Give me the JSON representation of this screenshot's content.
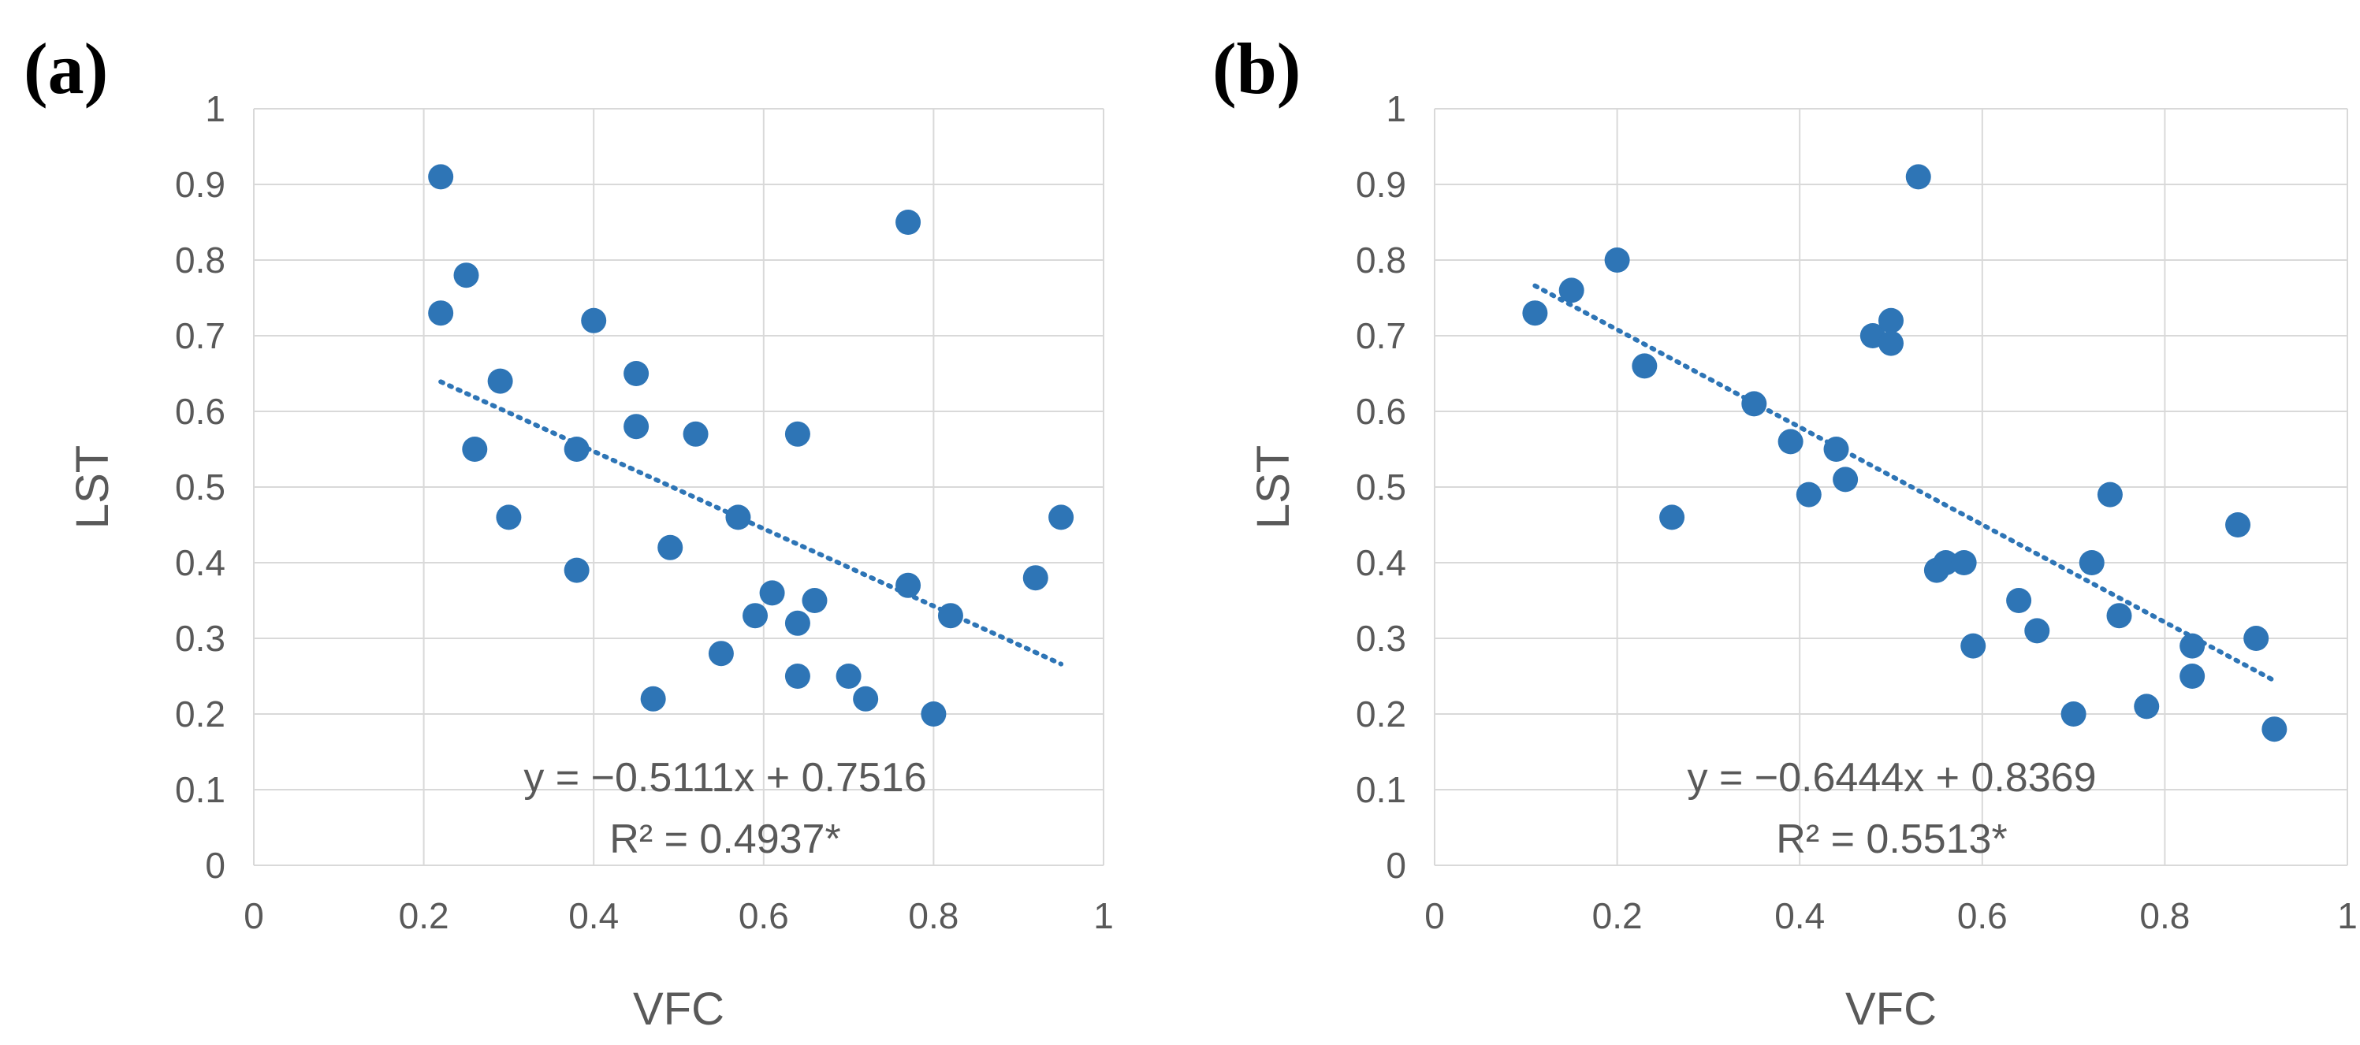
{
  "colors": {
    "marker": "#2E75B6",
    "grid": "#D9D9D9",
    "text": "#595959",
    "background": "#FFFFFF"
  },
  "chart_data": [
    {
      "type": "scatter",
      "panel_label": "(a)",
      "xlabel": "VFC",
      "ylabel": "LST",
      "xlim": [
        0,
        1
      ],
      "ylim": [
        0,
        1
      ],
      "x_ticks": [
        "0",
        "0.2",
        "0.4",
        "0.6",
        "0.8",
        "1"
      ],
      "y_ticks": [
        "0",
        "0.1",
        "0.2",
        "0.3",
        "0.4",
        "0.5",
        "0.6",
        "0.7",
        "0.8",
        "0.9",
        "1"
      ],
      "grid": true,
      "points": [
        [
          0.22,
          0.91
        ],
        [
          0.22,
          0.73
        ],
        [
          0.25,
          0.78
        ],
        [
          0.26,
          0.55
        ],
        [
          0.29,
          0.64
        ],
        [
          0.3,
          0.46
        ],
        [
          0.38,
          0.55
        ],
        [
          0.38,
          0.39
        ],
        [
          0.4,
          0.72
        ],
        [
          0.45,
          0.65
        ],
        [
          0.45,
          0.58
        ],
        [
          0.47,
          0.22
        ],
        [
          0.49,
          0.42
        ],
        [
          0.52,
          0.57
        ],
        [
          0.55,
          0.28
        ],
        [
          0.57,
          0.46
        ],
        [
          0.59,
          0.33
        ],
        [
          0.61,
          0.36
        ],
        [
          0.64,
          0.57
        ],
        [
          0.64,
          0.32
        ],
        [
          0.64,
          0.25
        ],
        [
          0.66,
          0.35
        ],
        [
          0.7,
          0.25
        ],
        [
          0.72,
          0.22
        ],
        [
          0.77,
          0.85
        ],
        [
          0.77,
          0.37
        ],
        [
          0.8,
          0.2
        ],
        [
          0.82,
          0.33
        ],
        [
          0.92,
          0.38
        ],
        [
          0.95,
          0.46
        ]
      ],
      "trendline": {
        "slope": -0.5111,
        "intercept": 0.7516,
        "x_range": [
          0.22,
          0.95
        ]
      },
      "equation": "y = −0.5111x + 0.7516",
      "r_squared": "R² = 0.4937*"
    },
    {
      "type": "scatter",
      "panel_label": "(b)",
      "xlabel": "VFC",
      "ylabel": "LST",
      "xlim": [
        0,
        1
      ],
      "ylim": [
        0,
        1
      ],
      "x_ticks": [
        "0",
        "0.2",
        "0.4",
        "0.6",
        "0.8",
        "1"
      ],
      "y_ticks": [
        "0",
        "0.1",
        "0.2",
        "0.3",
        "0.4",
        "0.5",
        "0.6",
        "0.7",
        "0.8",
        "0.9",
        "1"
      ],
      "grid": true,
      "points": [
        [
          0.11,
          0.73
        ],
        [
          0.15,
          0.76
        ],
        [
          0.2,
          0.8
        ],
        [
          0.23,
          0.66
        ],
        [
          0.26,
          0.46
        ],
        [
          0.35,
          0.61
        ],
        [
          0.39,
          0.56
        ],
        [
          0.41,
          0.49
        ],
        [
          0.44,
          0.55
        ],
        [
          0.45,
          0.51
        ],
        [
          0.48,
          0.7
        ],
        [
          0.5,
          0.72
        ],
        [
          0.5,
          0.69
        ],
        [
          0.53,
          0.91
        ],
        [
          0.55,
          0.39
        ],
        [
          0.56,
          0.4
        ],
        [
          0.58,
          0.4
        ],
        [
          0.59,
          0.29
        ],
        [
          0.64,
          0.35
        ],
        [
          0.66,
          0.31
        ],
        [
          0.7,
          0.2
        ],
        [
          0.72,
          0.4
        ],
        [
          0.74,
          0.49
        ],
        [
          0.75,
          0.33
        ],
        [
          0.78,
          0.21
        ],
        [
          0.83,
          0.29
        ],
        [
          0.83,
          0.25
        ],
        [
          0.88,
          0.45
        ],
        [
          0.9,
          0.3
        ],
        [
          0.92,
          0.18
        ]
      ],
      "trendline": {
        "slope": -0.6444,
        "intercept": 0.8369,
        "x_range": [
          0.11,
          0.92
        ]
      },
      "equation": "y = −0.6444x + 0.8369",
      "r_squared": "R² = 0.5513*"
    }
  ]
}
